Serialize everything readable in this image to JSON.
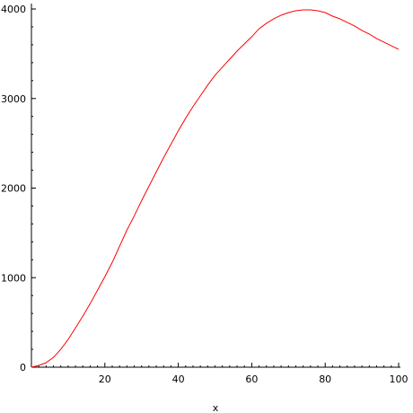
{
  "chart_data": {
    "type": "line",
    "title": "",
    "xlabel": "x",
    "ylabel": "",
    "xlim": [
      0,
      100
    ],
    "ylim": [
      0,
      4000
    ],
    "x_ticks": [
      20,
      40,
      60,
      80,
      100
    ],
    "y_ticks": [
      0,
      1000,
      2000,
      3000,
      4000
    ],
    "x_tick_labels": [
      "20",
      "40",
      "60",
      "80",
      "100"
    ],
    "y_tick_labels": [
      "0",
      "1000",
      "2000",
      "3000",
      "4000"
    ],
    "x_minor_step": 2,
    "y_minor_step": 200,
    "grid": false,
    "legend": "none",
    "series": [
      {
        "color": "#ff0000",
        "x": [
          0,
          2,
          4,
          6,
          8,
          10,
          12,
          14,
          16,
          18,
          20,
          22,
          24,
          26,
          28,
          30,
          32,
          34,
          36,
          38,
          40,
          42,
          44,
          46,
          48,
          50,
          52,
          54,
          56,
          58,
          60,
          62,
          64,
          66,
          68,
          70,
          72,
          74,
          76,
          78,
          80,
          82,
          84,
          86,
          88,
          90,
          92,
          94,
          96,
          98,
          100
        ],
        "y": [
          0,
          20,
          50,
          110,
          200,
          310,
          440,
          570,
          710,
          860,
          1010,
          1170,
          1350,
          1530,
          1690,
          1860,
          2020,
          2180,
          2340,
          2490,
          2640,
          2780,
          2910,
          3030,
          3150,
          3260,
          3350,
          3440,
          3530,
          3610,
          3690,
          3780,
          3840,
          3890,
          3930,
          3960,
          3980,
          3990,
          3990,
          3980,
          3960,
          3920,
          3890,
          3850,
          3810,
          3760,
          3720,
          3670,
          3630,
          3590,
          3550
        ]
      }
    ]
  }
}
